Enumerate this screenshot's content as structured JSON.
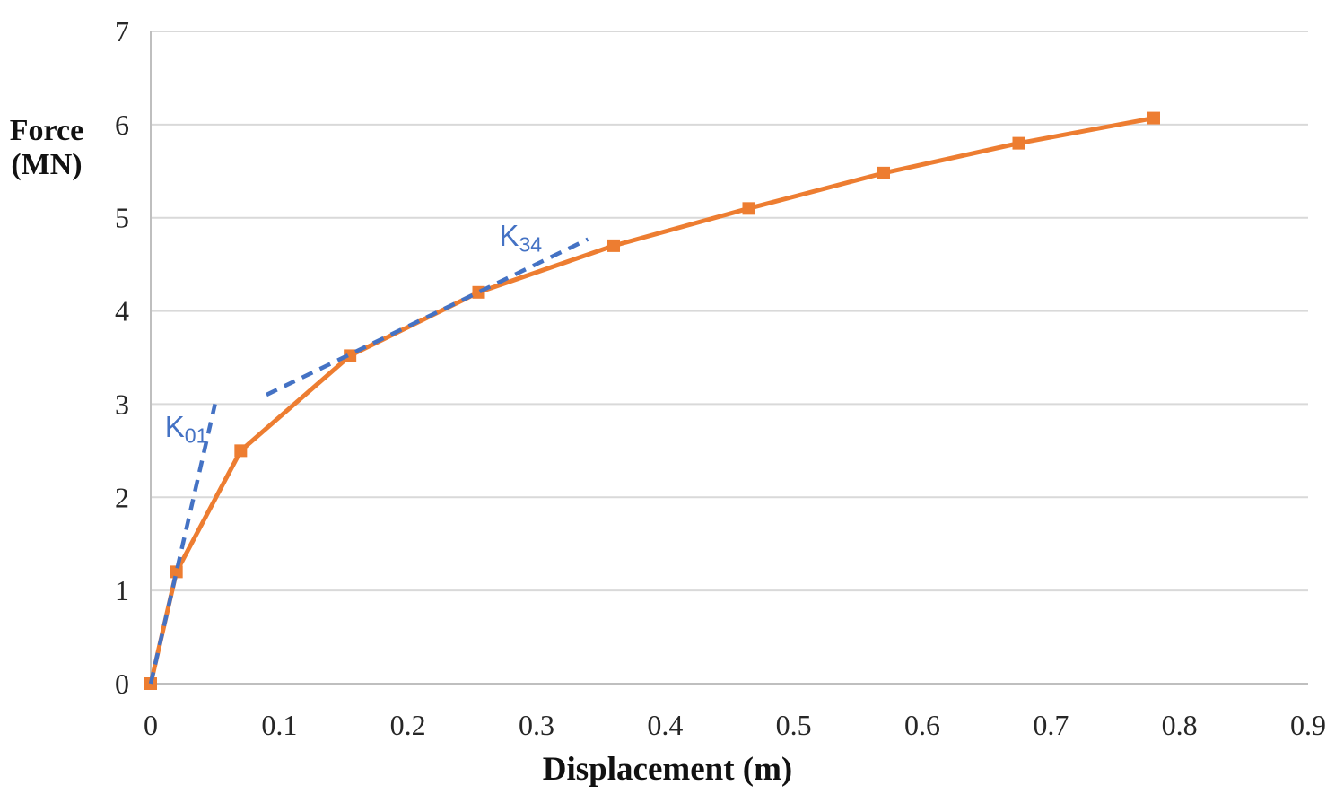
{
  "chart_data": {
    "type": "line",
    "title": "",
    "xlabel": "Displacement (m)",
    "ylabel": "Force (MN)",
    "ylabel_lines": [
      "Force",
      "(MN)"
    ],
    "xlim": [
      0,
      0.9
    ],
    "ylim": [
      0,
      7
    ],
    "grid": "horizontal",
    "legend": "none",
    "x_ticks": [
      {
        "value": 0,
        "label": "0"
      },
      {
        "value": 0.1,
        "label": "0.1"
      },
      {
        "value": 0.2,
        "label": "0.2"
      },
      {
        "value": 0.3,
        "label": "0.3"
      },
      {
        "value": 0.4,
        "label": "0.4"
      },
      {
        "value": 0.5,
        "label": "0.5"
      },
      {
        "value": 0.6,
        "label": "0.6"
      },
      {
        "value": 0.7,
        "label": "0.7"
      },
      {
        "value": 0.8,
        "label": "0.8"
      },
      {
        "value": 0.9,
        "label": "0.9"
      }
    ],
    "y_ticks": [
      {
        "value": 0,
        "label": "0"
      },
      {
        "value": 1,
        "label": "1"
      },
      {
        "value": 2,
        "label": "2"
      },
      {
        "value": 3,
        "label": "3"
      },
      {
        "value": 4,
        "label": "4"
      },
      {
        "value": 5,
        "label": "5"
      },
      {
        "value": 6,
        "label": "6"
      },
      {
        "value": 7,
        "label": "7"
      }
    ],
    "series": [
      {
        "name": "force-displacement-curve",
        "color": "#ED7D31",
        "style": "solid",
        "line_width": 5,
        "marker": "square",
        "marker_size": 14,
        "points": [
          [
            0,
            0
          ],
          [
            0.02,
            1.2
          ],
          [
            0.07,
            2.5
          ],
          [
            0.155,
            3.52
          ],
          [
            0.255,
            4.2
          ],
          [
            0.36,
            4.7
          ],
          [
            0.465,
            5.1
          ],
          [
            0.57,
            5.48
          ],
          [
            0.675,
            5.8
          ],
          [
            0.78,
            6.07
          ]
        ]
      },
      {
        "name": "K01-secant-stiffness-line",
        "color": "#4472C4",
        "style": "dashed",
        "line_width": 4.5,
        "marker": "none",
        "points": [
          [
            0,
            0
          ],
          [
            0.05,
            3.0
          ]
        ]
      },
      {
        "name": "K34-secant-stiffness-line",
        "color": "#4472C4",
        "style": "dashed",
        "line_width": 4.5,
        "marker": "none",
        "points": [
          [
            0.09,
            3.1
          ],
          [
            0.34,
            4.77
          ]
        ]
      }
    ],
    "annotations": [
      {
        "id": "K01",
        "text": "K",
        "sub": "01",
        "x": 0.011,
        "y": 2.92,
        "color": "#4472C4"
      },
      {
        "id": "K34",
        "text": "K",
        "sub": "34",
        "x": 0.271,
        "y": 4.97,
        "color": "#4472C4"
      }
    ],
    "colors": {
      "gridline": "#D9D9D9",
      "axis_line": "#BFBFBF",
      "tick_text": "#262626",
      "title_text": "#111111"
    }
  }
}
